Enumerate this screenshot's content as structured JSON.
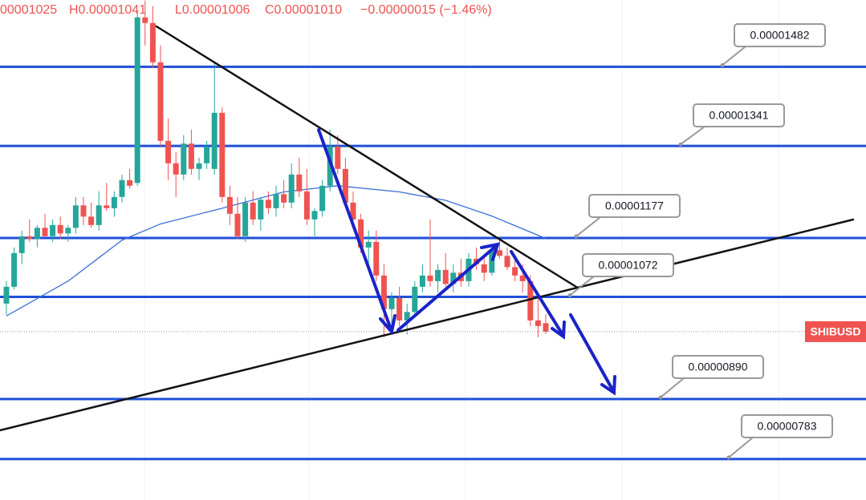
{
  "chart_data": {
    "type": "candlestick",
    "header": [
      "00001025",
      "H0.00001041",
      "L0.00001006",
      "C0.00001010",
      "−0.00000015 (−1.46%)"
    ],
    "symbol": "SHIBUSD",
    "ylim": [
      7.1e-06,
      1.601e-05
    ],
    "up_color": "#26a69a",
    "down_color": "#ef5350",
    "open": [
      1.06e-05,
      1.09e-05,
      1.15e-05,
      1.18e-05,
      1.175e-05,
      1.195e-05,
      1.18e-05,
      1.2e-05,
      1.185e-05,
      1.195e-05,
      1.235e-05,
      1.215e-05,
      1.2e-05,
      1.235e-05,
      1.23e-05,
      1.25e-05,
      1.28e-05,
      1.275e-05,
      1.57e-05,
      1.56e-05,
      1.49e-05,
      1.35e-05,
      1.31e-05,
      1.29e-05,
      1.345e-05,
      1.3e-05,
      1.31e-05,
      1.3e-05,
      1.4e-05,
      1.25e-05,
      1.22e-05,
      1.18e-05,
      1.24e-05,
      1.21e-05,
      1.245e-05,
      1.23e-05,
      1.255e-05,
      1.24e-05,
      1.29e-05,
      1.26e-05,
      1.21e-05,
      1.225e-05,
      1.27e-05,
      1.34e-05,
      1.3e-05,
      1.24e-05,
      1.21e-05,
      1.16e-05,
      1.17e-05,
      1.11e-05,
      1.05e-05,
      1.07e-05,
      1.03e-05,
      1.045e-05,
      1.09e-05,
      1.11e-05,
      1.1e-05,
      1.12e-05,
      1.095e-05,
      1.115e-05,
      1.1e-05,
      1.14e-05,
      1.13e-05,
      1.115e-05,
      1.155e-05,
      1.145e-05,
      1.125e-05,
      1.11e-05,
      1.1e-05,
      1.03e-05,
      1.025e-05
    ],
    "high": [
      1.1e-05,
      1.16e-05,
      1.19e-05,
      1.21e-05,
      1.2e-05,
      1.22e-05,
      1.21e-05,
      1.215e-05,
      1.2e-05,
      1.25e-05,
      1.25e-05,
      1.24e-05,
      1.26e-05,
      1.275e-05,
      1.26e-05,
      1.29e-05,
      1.3e-05,
      1.58e-05,
      1.6e-05,
      1.59e-05,
      1.52e-05,
      1.39e-05,
      1.33e-05,
      1.36e-05,
      1.37e-05,
      1.32e-05,
      1.35e-05,
      1.49e-05,
      1.41e-05,
      1.27e-05,
      1.25e-05,
      1.25e-05,
      1.26e-05,
      1.25e-05,
      1.26e-05,
      1.27e-05,
      1.28e-05,
      1.31e-05,
      1.32e-05,
      1.3e-05,
      1.23e-05,
      1.28e-05,
      1.37e-05,
      1.36e-05,
      1.32e-05,
      1.26e-05,
      1.22e-05,
      1.19e-05,
      1.19e-05,
      1.13e-05,
      1.08e-05,
      1.09e-05,
      1.06e-05,
      1.1e-05,
      1.13e-05,
      1.21e-05,
      1.13e-05,
      1.15e-05,
      1.13e-05,
      1.14e-05,
      1.15e-05,
      1.16e-05,
      1.145e-05,
      1.16e-05,
      1.175e-05,
      1.16e-05,
      1.14e-05,
      1.13e-05,
      1.11e-05,
      1.07e-05,
      1.041e-05
    ],
    "low": [
      1.04e-05,
      1.085e-05,
      1.13e-05,
      1.17e-05,
      1.16e-05,
      1.18e-05,
      1.17e-05,
      1.175e-05,
      1.17e-05,
      1.185e-05,
      1.2e-05,
      1.195e-05,
      1.19e-05,
      1.225e-05,
      1.215e-05,
      1.24e-05,
      1.265e-05,
      1.27e-05,
      1.52e-05,
      1.48e-05,
      1.34e-05,
      1.28e-05,
      1.25e-05,
      1.28e-05,
      1.29e-05,
      1.28e-05,
      1.3e-05,
      1.29e-05,
      1.24e-05,
      1.2e-05,
      1.175e-05,
      1.17e-05,
      1.2e-05,
      1.19e-05,
      1.22e-05,
      1.215e-05,
      1.23e-05,
      1.23e-05,
      1.25e-05,
      1.2e-05,
      1.18e-05,
      1.215e-05,
      1.26e-05,
      1.29e-05,
      1.23e-05,
      1.2e-05,
      1.15e-05,
      1.12e-05,
      1.1e-05,
      1e-05,
      1.01e-05,
      1.02e-05,
      1.005e-05,
      1.04e-05,
      1.08e-05,
      1.09e-05,
      1.08e-05,
      1.09e-05,
      1.08e-05,
      1.09e-05,
      1.09e-05,
      1.12e-05,
      1.1e-05,
      1.11e-05,
      1.14e-05,
      1.12e-05,
      1.1e-05,
      1.08e-05,
      1.02e-05,
      1e-05,
      1.006e-05
    ],
    "close": [
      1.09e-05,
      1.15e-05,
      1.18e-05,
      1.175e-05,
      1.195e-05,
      1.18e-05,
      1.2e-05,
      1.185e-05,
      1.195e-05,
      1.235e-05,
      1.215e-05,
      1.2e-05,
      1.235e-05,
      1.23e-05,
      1.25e-05,
      1.28e-05,
      1.27e-05,
      1.57e-05,
      1.56e-05,
      1.49e-05,
      1.35e-05,
      1.31e-05,
      1.29e-05,
      1.345e-05,
      1.3e-05,
      1.31e-05,
      1.34e-05,
      1.4e-05,
      1.25e-05,
      1.22e-05,
      1.18e-05,
      1.24e-05,
      1.21e-05,
      1.245e-05,
      1.23e-05,
      1.255e-05,
      1.24e-05,
      1.29e-05,
      1.26e-05,
      1.21e-05,
      1.225e-05,
      1.27e-05,
      1.34e-05,
      1.3e-05,
      1.24e-05,
      1.21e-05,
      1.16e-05,
      1.17e-05,
      1.11e-05,
      1.05e-05,
      1.07e-05,
      1.03e-05,
      1.045e-05,
      1.09e-05,
      1.11e-05,
      1.1e-05,
      1.12e-05,
      1.095e-05,
      1.115e-05,
      1.1e-05,
      1.14e-05,
      1.13e-05,
      1.115e-05,
      1.155e-05,
      1.145e-05,
      1.125e-05,
      1.11e-05,
      1.1e-05,
      1.03e-05,
      1.02e-05,
      1.01e-05
    ],
    "moving_average": {
      "color": "#3b6fd8",
      "x": [
        0,
        8,
        15,
        20,
        28,
        36,
        43,
        51,
        57,
        63,
        70
      ],
      "values": [
        1.038e-05,
        1.1e-05,
        1.173e-05,
        1.202e-05,
        1.23e-05,
        1.259e-05,
        1.27e-05,
        1.259e-05,
        1.244e-05,
        1.216e-05,
        1.176e-05
      ]
    },
    "levels": {
      "color": "#1f4fd8",
      "values": [
        1.482e-05,
        1.341e-05,
        1.177e-05,
        1.072e-05,
        8.9e-06,
        7.83e-06
      ],
      "value_labels": [
        "0.00001482",
        "0.00001341",
        "0.00001177",
        "0.00001072",
        "0.00000890",
        "0.00000783"
      ]
    }
  }
}
